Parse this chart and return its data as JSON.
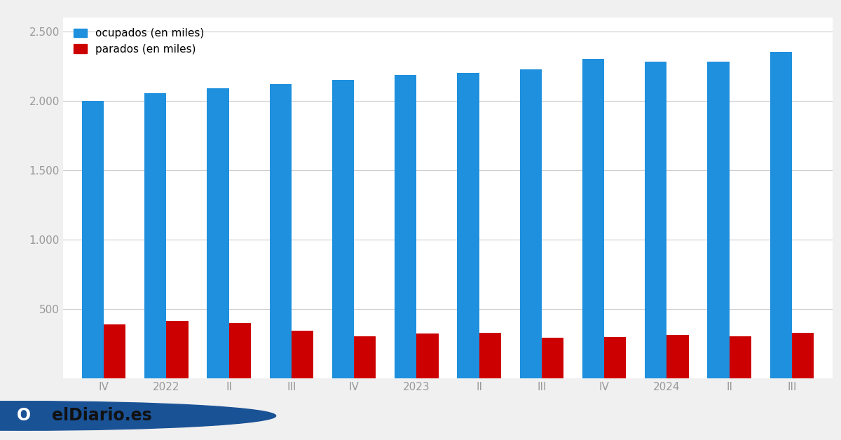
{
  "x_labels": [
    "IV",
    "2022",
    "II",
    "III",
    "IV",
    "2023",
    "II",
    "III",
    "IV",
    "2024",
    "II",
    "III"
  ],
  "ocupados": [
    2000,
    2055,
    2090,
    2120,
    2150,
    2185,
    2200,
    2225,
    2305,
    2285,
    2285,
    2355
  ],
  "parados": [
    390,
    415,
    400,
    345,
    305,
    325,
    330,
    295,
    298,
    315,
    305,
    330
  ],
  "blue_color": "#1e90dd",
  "red_color": "#cc0000",
  "background_color": "#f0f0f0",
  "plot_bg_color": "#ffffff",
  "legend_ocupados": "ocupados (en miles)",
  "legend_parados": "parados (en miles)",
  "ytick_labels": [
    "500",
    "1.000",
    "1.500",
    "2.000",
    "2.500"
  ],
  "yticks": [
    500,
    1000,
    1500,
    2000,
    2500
  ],
  "ylim": [
    0,
    2600
  ],
  "bar_width": 0.35,
  "grid_color": "#cccccc",
  "axis_label_color": "#999999",
  "footer_bg": "#cccccc",
  "logo_text": "elDiario.es",
  "logo_blue": "#1a5296"
}
